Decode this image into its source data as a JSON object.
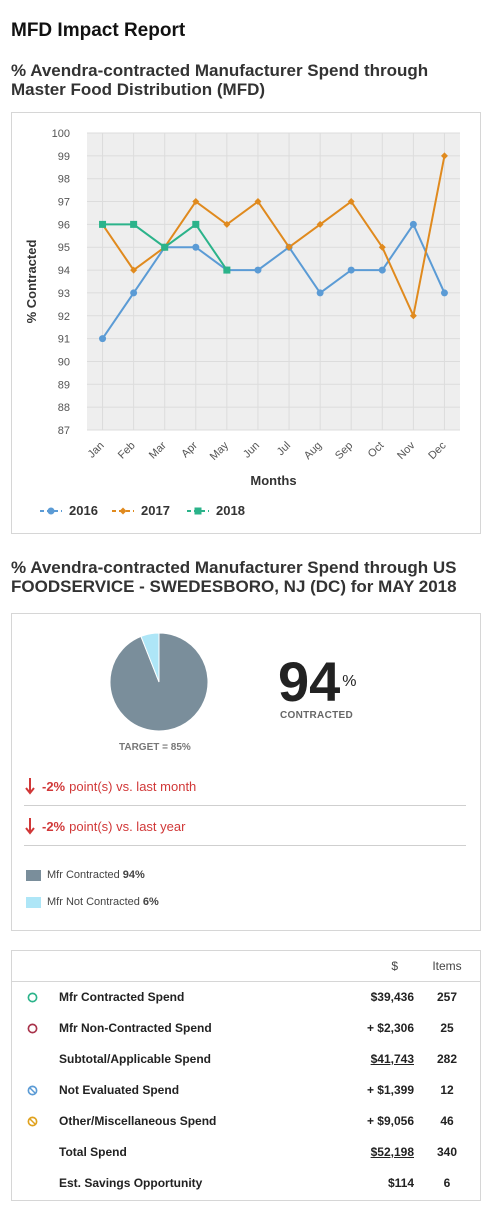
{
  "page": {
    "title": "MFD Impact Report"
  },
  "section1": {
    "heading": "% Avendra-contracted Manufacturer Spend through Master Food Distribution (MFD)"
  },
  "chart_data": {
    "type": "line",
    "title": "",
    "xlabel": "Months",
    "ylabel": "% Contracted",
    "ylim": [
      87,
      100
    ],
    "yticks": [
      "100",
      "99",
      "98",
      "97",
      "96",
      "95",
      "94",
      "93",
      "92",
      "91",
      "90",
      "89",
      "88",
      "87"
    ],
    "categories": [
      "Jan",
      "Feb",
      "Mar",
      "Apr",
      "May",
      "Jun",
      "Jul",
      "Aug",
      "Sep",
      "Oct",
      "Nov",
      "Dec"
    ],
    "grid": true,
    "legend_position": "bottom-left",
    "series": [
      {
        "name": "2016",
        "color": "#5b9bd5",
        "marker": "circle",
        "values": [
          91,
          93,
          95,
          95,
          94,
          94,
          95,
          93,
          94,
          94,
          96,
          93
        ]
      },
      {
        "name": "2017",
        "color": "#e08a1e",
        "marker": "diamond",
        "values": [
          96,
          94,
          95,
          97,
          96,
          97,
          95,
          96,
          97,
          95,
          92,
          99
        ]
      },
      {
        "name": "2018",
        "color": "#2bb38a",
        "marker": "square",
        "values": [
          96,
          96,
          95,
          96,
          94,
          null,
          null,
          null,
          null,
          null,
          null,
          null
        ]
      }
    ]
  },
  "section2": {
    "heading": "% Avendra-contracted Manufacturer Spend through US FOODSERVICE - SWEDESBORO, NJ (DC) for MAY 2018",
    "contracted_pct": "94",
    "pct_symbol": "%",
    "contracted_label": "CONTRACTED",
    "target_label": "TARGET = 85%",
    "pie": {
      "contracted": 94,
      "not_contracted": 6,
      "contracted_color": "#7a8e9b",
      "not_contracted_color": "#aee6f7"
    },
    "month_delta": {
      "value": "-2%",
      "text": "point(s) vs. last month"
    },
    "year_delta": {
      "value": "-2%",
      "text": "point(s) vs. last year"
    },
    "legend": [
      {
        "label": "Mfr Contracted",
        "value": "94%",
        "color": "#7a8e9b"
      },
      {
        "label": "Mfr Not Contracted",
        "value": "6%",
        "color": "#aee6f7"
      }
    ]
  },
  "spend_table": {
    "col_amount": "$",
    "col_items": "Items",
    "rows": [
      {
        "label": "Mfr Contracted Spend",
        "amount": "$39,436",
        "items": "257",
        "icon": "contracted-circle-icon",
        "icon_color": "#2bb38a"
      },
      {
        "label": "Mfr Non-Contracted Spend",
        "amount": "+ $2,306",
        "items": "25",
        "icon": "non-contracted-circle-icon",
        "icon_color": "#a8324a"
      },
      {
        "label": "Subtotal/Applicable Spend",
        "amount": "$41,743",
        "items": "282",
        "icon": "",
        "icon_color": ""
      },
      {
        "label": "Not Evaluated Spend",
        "amount": "+ $1,399",
        "items": "12",
        "icon": "not-evaluated-icon",
        "icon_color": "#5b9bd5"
      },
      {
        "label": "Other/Miscellaneous Spend",
        "amount": "+ $9,056",
        "items": "46",
        "icon": "miscellaneous-icon",
        "icon_color": "#e0a21e"
      },
      {
        "label": "Total Spend",
        "amount": "$52,198",
        "items": "340",
        "icon": "",
        "icon_color": ""
      },
      {
        "label": "Est. Savings Opportunity",
        "amount": "$114",
        "items": "6",
        "icon": "",
        "icon_color": ""
      }
    ]
  }
}
